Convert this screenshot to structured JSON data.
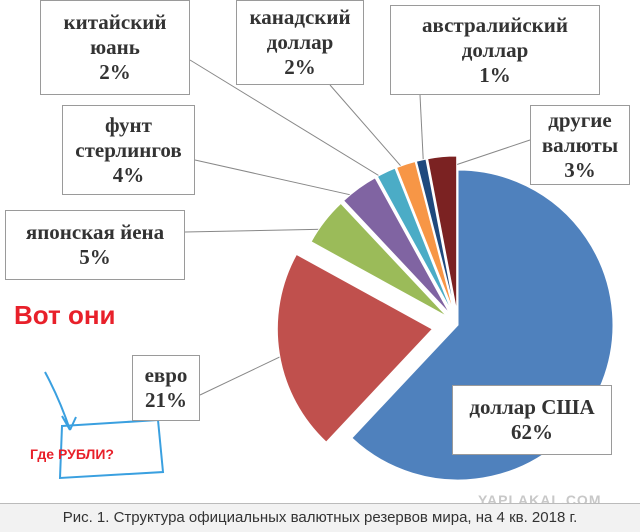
{
  "chart_data": {
    "type": "pie",
    "caption": "Рис. 1. Структура официальных валютных резервов мира, на 4 кв. 2018 г.",
    "watermark": "YAPLAKAL.COM",
    "annotations": [
      "Вот они",
      "Где РУБЛИ?"
    ],
    "categories": [
      "доллар США",
      "евро",
      "японская йена",
      "фунт стерлингов",
      "китайский юань",
      "канадский доллар",
      "австралийский доллар",
      "другие валюты"
    ],
    "values": [
      62,
      21,
      5,
      4,
      2,
      2,
      1,
      3
    ],
    "value_labels": [
      "62%",
      "21%",
      "5%",
      "4%",
      "2%",
      "2%",
      "1%",
      "3%"
    ],
    "colors": [
      "#4f81bd",
      "#c0504d",
      "#9bbb59",
      "#8064a2",
      "#4bacc6",
      "#f79646",
      "#1f497d",
      "#7b2222"
    ]
  }
}
